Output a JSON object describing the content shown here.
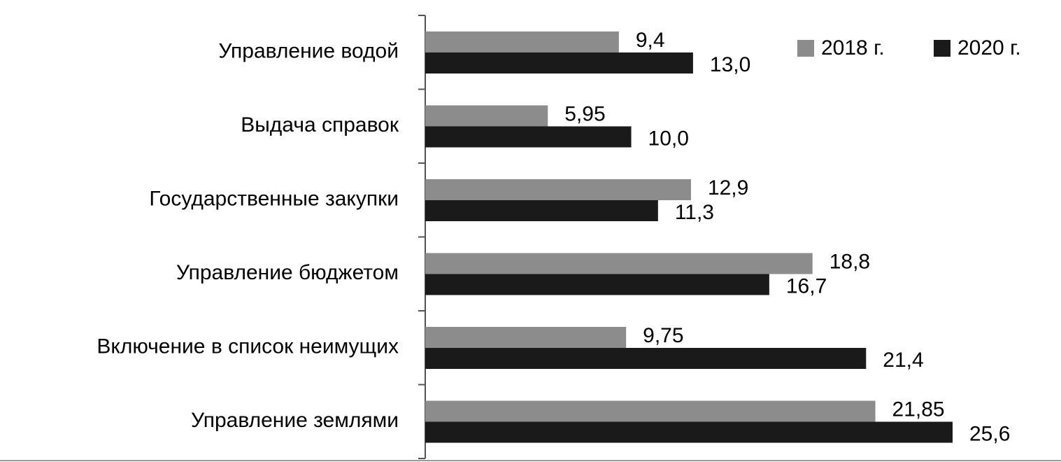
{
  "chart_data": {
    "type": "bar",
    "orientation": "horizontal",
    "categories": [
      "Управление водой",
      "Выдача справок",
      "Государственные закупки",
      "Управление бюджетом",
      "Включение в список неимущих",
      "Управление землями"
    ],
    "series": [
      {
        "name": "2018 г.",
        "color": "#8c8c8c",
        "values": [
          9.4,
          5.95,
          12.9,
          18.8,
          9.75,
          21.85
        ],
        "value_labels": [
          "9,4",
          "5,95",
          "12,9",
          "18,8",
          "9,75",
          "21,85"
        ]
      },
      {
        "name": "2020 г.",
        "color": "#1a1a1a",
        "values": [
          13.0,
          10.0,
          11.3,
          16.7,
          21.4,
          25.6
        ],
        "value_labels": [
          "13,0",
          "10,0",
          "11,3",
          "16,7",
          "21,4",
          "25,6"
        ]
      }
    ],
    "legend": "top-right"
  }
}
